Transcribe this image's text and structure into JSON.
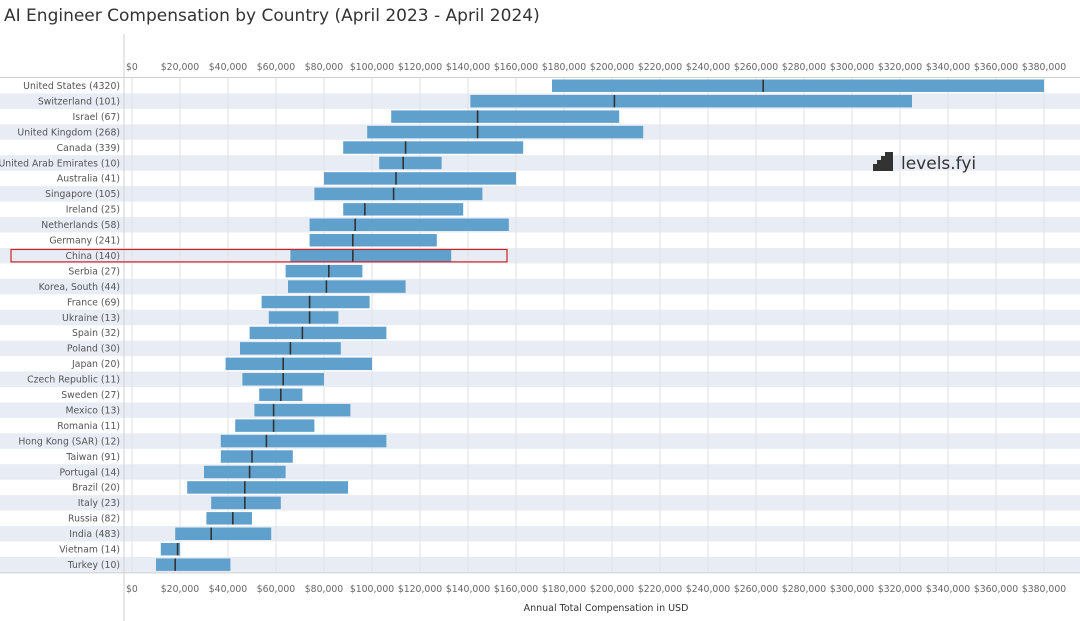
{
  "title": "AI Engineer Compensation by Country (April 2023 - April 2024)",
  "logo_text": "levels.fyi",
  "chart_data": {
    "type": "box",
    "title": "AI Engineer Compensation by Country (April 2023 - April 2024)",
    "xlabel": "Annual Total Compensation in USD",
    "ylabel": "",
    "xlim": [
      0,
      380000
    ],
    "x_ticks": [
      0,
      20000,
      40000,
      60000,
      80000,
      100000,
      120000,
      140000,
      160000,
      180000,
      200000,
      220000,
      240000,
      260000,
      280000,
      300000,
      320000,
      340000,
      360000,
      380000
    ],
    "x_tick_labels": [
      "$0",
      "$20,000",
      "$40,000",
      "$60,000",
      "$80,000",
      "$100,000",
      "$120,000",
      "$140,000",
      "$160,000",
      "$180,000",
      "$200,000",
      "$220,000",
      "$240,000",
      "$260,000",
      "$280,000",
      "$300,000",
      "$320,000",
      "$340,000",
      "$360,000",
      "$380,000"
    ],
    "highlighted": "China (140)",
    "bar_color": "#5fa0cc",
    "median_color": "#333333",
    "highlight_color": "#cc2222",
    "rows": [
      {
        "label": "United States (4320)",
        "low": 175000,
        "high": 380000,
        "median": 263000
      },
      {
        "label": "Switzerland (101)",
        "low": 141000,
        "high": 325000,
        "median": 201000
      },
      {
        "label": "Israel (67)",
        "low": 108000,
        "high": 203000,
        "median": 144000
      },
      {
        "label": "United Kingdom (268)",
        "low": 98000,
        "high": 213000,
        "median": 144000
      },
      {
        "label": "Canada (339)",
        "low": 88000,
        "high": 163000,
        "median": 114000
      },
      {
        "label": "United Arab Emirates (10)",
        "low": 103000,
        "high": 129000,
        "median": 113000
      },
      {
        "label": "Australia (41)",
        "low": 80000,
        "high": 160000,
        "median": 110000
      },
      {
        "label": "Singapore (105)",
        "low": 76000,
        "high": 146000,
        "median": 109000
      },
      {
        "label": "Ireland (25)",
        "low": 88000,
        "high": 138000,
        "median": 97000
      },
      {
        "label": "Netherlands (58)",
        "low": 74000,
        "high": 157000,
        "median": 93000
      },
      {
        "label": "Germany (241)",
        "low": 74000,
        "high": 127000,
        "median": 92000
      },
      {
        "label": "China (140)",
        "low": 66000,
        "high": 133000,
        "median": 92000
      },
      {
        "label": "Serbia (27)",
        "low": 64000,
        "high": 96000,
        "median": 82000
      },
      {
        "label": "Korea, South (44)",
        "low": 65000,
        "high": 114000,
        "median": 81000
      },
      {
        "label": "France (69)",
        "low": 54000,
        "high": 99000,
        "median": 74000
      },
      {
        "label": "Ukraine (13)",
        "low": 57000,
        "high": 86000,
        "median": 74000
      },
      {
        "label": "Spain (32)",
        "low": 49000,
        "high": 106000,
        "median": 71000
      },
      {
        "label": "Poland (30)",
        "low": 45000,
        "high": 87000,
        "median": 66000
      },
      {
        "label": "Japan (20)",
        "low": 39000,
        "high": 100000,
        "median": 63000
      },
      {
        "label": "Czech Republic (11)",
        "low": 46000,
        "high": 80000,
        "median": 63000
      },
      {
        "label": "Sweden (27)",
        "low": 53000,
        "high": 71000,
        "median": 62000
      },
      {
        "label": "Mexico (13)",
        "low": 51000,
        "high": 91000,
        "median": 59000
      },
      {
        "label": "Romania (11)",
        "low": 43000,
        "high": 76000,
        "median": 59000
      },
      {
        "label": "Hong Kong (SAR) (12)",
        "low": 37000,
        "high": 106000,
        "median": 56000
      },
      {
        "label": "Taiwan (91)",
        "low": 37000,
        "high": 67000,
        "median": 50000
      },
      {
        "label": "Portugal (14)",
        "low": 30000,
        "high": 64000,
        "median": 49000
      },
      {
        "label": "Brazil (20)",
        "low": 23000,
        "high": 90000,
        "median": 47000
      },
      {
        "label": "Italy (23)",
        "low": 33000,
        "high": 62000,
        "median": 47000
      },
      {
        "label": "Russia (82)",
        "low": 31000,
        "high": 50000,
        "median": 42000
      },
      {
        "label": "India (483)",
        "low": 18000,
        "high": 58000,
        "median": 33000
      },
      {
        "label": "Vietnam (14)",
        "low": 12000,
        "high": 20000,
        "median": 19000
      },
      {
        "label": "Turkey (10)",
        "low": 10000,
        "high": 41000,
        "median": 18000
      }
    ]
  }
}
